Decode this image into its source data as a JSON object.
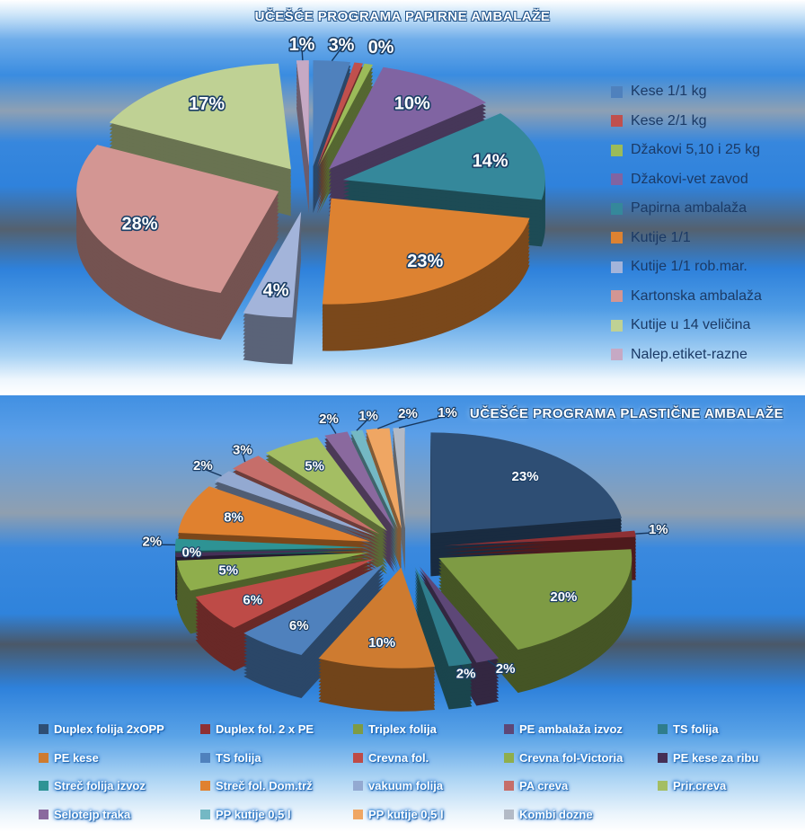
{
  "chart_data": [
    {
      "type": "pie",
      "title": "UČEŠĆE PROGRAMA PAPIRNE AMBALAŽE",
      "legend_position": "right",
      "slices": [
        {
          "name": "Kese   1/1 kg",
          "value": 3,
          "label": "3%",
          "color": "#4F81BD"
        },
        {
          "name": "Kese 2/1 kg",
          "value": 0,
          "label": "0%",
          "color": "#C0504D"
        },
        {
          "name": "Džakovi 5,10 i 25 kg",
          "value": 0,
          "label": "",
          "color": "#9BBB59"
        },
        {
          "name": "Džakovi-vet zavod",
          "value": 10,
          "label": "10%",
          "color": "#8064A2"
        },
        {
          "name": "Papirna  ambalaža",
          "value": 14,
          "label": "14%",
          "color": "#35889B"
        },
        {
          "name": "Kutije  1/1",
          "value": 23,
          "label": "23%",
          "color": "#DD8231"
        },
        {
          "name": "Kutije 1/1 rob.mar.",
          "value": 4,
          "label": "4%",
          "color": "#A3B4DA"
        },
        {
          "name": "Kartonska  ambalaža",
          "value": 28,
          "label": "28%",
          "color": "#D39693"
        },
        {
          "name": "Kutije u 14 veličina",
          "value": 17,
          "label": "17%",
          "color": "#BFD194"
        },
        {
          "name": "Nalep.etiket-razne",
          "value": 1,
          "label": "1%",
          "color": "#C6A9C4"
        }
      ]
    },
    {
      "type": "pie",
      "title": "UČEŠĆE PROGRAMA PLASTIČNE AMBALAŽE",
      "legend_position": "bottom",
      "slices": [
        {
          "name": "Duplex folija  2xOPP",
          "value": 23,
          "label": "23%",
          "color": "#2E4E74"
        },
        {
          "name": "Duplex fol. 2 x PE",
          "value": 1,
          "label": "1%",
          "color": "#8E3034"
        },
        {
          "name": "Triplex folija",
          "value": 20,
          "label": "20%",
          "color": "#7E9B44"
        },
        {
          "name": "PE ambalaža  izvoz",
          "value": 2,
          "label": "2%",
          "color": "#5D4777"
        },
        {
          "name": "TS folija",
          "value": 2,
          "label": "2%",
          "color": "#2F7D8C"
        },
        {
          "name": "PE kese",
          "value": 10,
          "label": "10%",
          "color": "#CE7B30"
        },
        {
          "name": "TS folija",
          "value": 6,
          "label": "6%",
          "color": "#4F81BD"
        },
        {
          "name": "Crevna fol.",
          "value": 6,
          "label": "6%",
          "color": "#BE4B47"
        },
        {
          "name": "Crevna fol-Victoria",
          "value": 5,
          "label": "5%",
          "color": "#8FAE4C"
        },
        {
          "name": "PE kese za ribu",
          "value": 0,
          "label": "0%",
          "color": "#452F56"
        },
        {
          "name": "Streč folija   izvoz",
          "value": 2,
          "label": "2%",
          "color": "#2E9394"
        },
        {
          "name": "Streč fol. Dom.trž",
          "value": 8,
          "label": "8%",
          "color": "#E0812F"
        },
        {
          "name": "vakuum folija",
          "value": 2,
          "label": "2%",
          "color": "#93A9D1"
        },
        {
          "name": "PA creva",
          "value": 3,
          "label": "3%",
          "color": "#C66E6A"
        },
        {
          "name": "Prir.creva",
          "value": 5,
          "label": "5%",
          "color": "#A4BE63"
        },
        {
          "name": "Selotejp traka",
          "value": 2,
          "label": "2%",
          "color": "#8A699E"
        },
        {
          "name": "PP kutije 0,5 l",
          "value": 1,
          "label": "1%",
          "color": "#74B8C4"
        },
        {
          "name": "PP kutije 0,5 l",
          "value": 2,
          "label": "2%",
          "color": "#EFA663"
        },
        {
          "name": "Kombi dozne",
          "value": 1,
          "label": "1%",
          "color": "#B3BAC6"
        }
      ]
    }
  ]
}
